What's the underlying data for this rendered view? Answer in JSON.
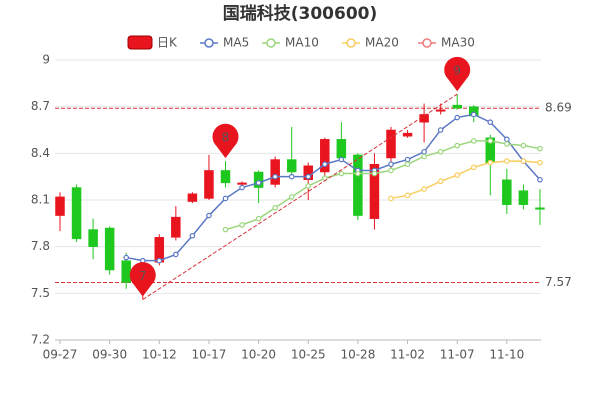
{
  "chart_data": {
    "type": "candlestick",
    "title": "国瑞科技(300600)",
    "categories": [
      "09-27",
      null,
      null,
      "09-30",
      null,
      null,
      "10-12",
      null,
      null,
      "10-17",
      null,
      null,
      "10-20",
      null,
      null,
      "10-25",
      null,
      null,
      "10-28",
      null,
      null,
      "11-02",
      null,
      null,
      "11-07",
      null,
      null,
      "11-10",
      null,
      null
    ],
    "ylim": [
      7.2,
      9
    ],
    "yticks": [
      7.2,
      7.5,
      7.8,
      8.1,
      8.4,
      8.7,
      9
    ],
    "grid": true,
    "up_color": "#e8141e",
    "down_color": "#1ec81e",
    "candles": {
      "name": "日K",
      "open": [
        8.0,
        8.18,
        7.91,
        7.92,
        7.71,
        7.57,
        7.7,
        7.86,
        8.09,
        8.11,
        8.29,
        8.2,
        8.28,
        8.2,
        8.36,
        8.23,
        8.28,
        8.49,
        8.39,
        7.98,
        8.37,
        8.51,
        8.6,
        8.67,
        8.71,
        8.7,
        8.5,
        8.23,
        8.16,
        8.05
      ],
      "high": [
        8.15,
        8.2,
        7.98,
        7.93,
        7.76,
        7.65,
        7.88,
        8.06,
        8.15,
        8.39,
        8.35,
        8.22,
        8.29,
        8.38,
        8.57,
        8.34,
        8.5,
        8.6,
        8.4,
        8.4,
        8.57,
        8.55,
        8.72,
        8.72,
        8.78,
        8.71,
        8.52,
        8.3,
        8.2,
        8.17
      ],
      "low": [
        7.9,
        7.83,
        7.72,
        7.62,
        7.53,
        7.46,
        7.68,
        7.84,
        8.08,
        8.1,
        8.18,
        8.19,
        8.08,
        8.18,
        8.25,
        8.1,
        8.25,
        8.35,
        7.97,
        7.91,
        8.3,
        8.5,
        8.47,
        8.65,
        8.68,
        8.6,
        8.13,
        8.01,
        8.04,
        7.94
      ],
      "close": [
        8.12,
        7.85,
        7.8,
        7.65,
        7.57,
        7.62,
        7.86,
        7.99,
        8.14,
        8.29,
        8.21,
        8.21,
        8.18,
        8.36,
        8.28,
        8.32,
        8.49,
        8.37,
        8.0,
        8.33,
        8.55,
        8.53,
        8.65,
        8.68,
        8.69,
        8.64,
        8.34,
        8.07,
        8.07,
        8.04
      ]
    },
    "series": [
      {
        "name": "MA5",
        "color": "#5b78c4",
        "values": [
          null,
          null,
          null,
          null,
          7.73,
          7.71,
          7.71,
          7.75,
          7.87,
          8.0,
          8.11,
          8.18,
          8.21,
          8.25,
          8.25,
          8.25,
          8.33,
          8.36,
          8.29,
          8.29,
          8.33,
          8.36,
          8.41,
          8.55,
          8.63,
          8.65,
          8.6,
          8.49,
          8.35,
          8.23
        ]
      },
      {
        "name": "MA10",
        "color": "#9bd67c",
        "values": [
          null,
          null,
          null,
          null,
          null,
          null,
          null,
          null,
          null,
          null,
          7.91,
          7.94,
          7.98,
          8.05,
          8.12,
          8.19,
          8.24,
          8.27,
          8.27,
          8.27,
          8.29,
          8.33,
          8.38,
          8.41,
          8.45,
          8.48,
          8.48,
          8.46,
          8.45,
          8.43
        ]
      },
      {
        "name": "MA20",
        "color": "#f7cd5e",
        "values": [
          null,
          null,
          null,
          null,
          null,
          null,
          null,
          null,
          null,
          null,
          null,
          null,
          null,
          null,
          null,
          null,
          null,
          null,
          null,
          null,
          8.11,
          8.13,
          8.17,
          8.22,
          8.26,
          8.31,
          8.34,
          8.35,
          8.35,
          8.34
        ]
      },
      {
        "name": "MA30",
        "color": "#f07a7a",
        "values": [
          null,
          null,
          null,
          null,
          null,
          null,
          null,
          null,
          null,
          null,
          null,
          null,
          null,
          null,
          null,
          null,
          null,
          null,
          null,
          null,
          null,
          null,
          null,
          null,
          null,
          null,
          null,
          null,
          null,
          null
        ]
      }
    ],
    "ref_lines": [
      8.69,
      7.57
    ],
    "markers": [
      {
        "label": "7",
        "value": 7.46
      },
      {
        "label": "8",
        "value": 8.35
      },
      {
        "label": "9",
        "value": 8.78
      }
    ]
  }
}
